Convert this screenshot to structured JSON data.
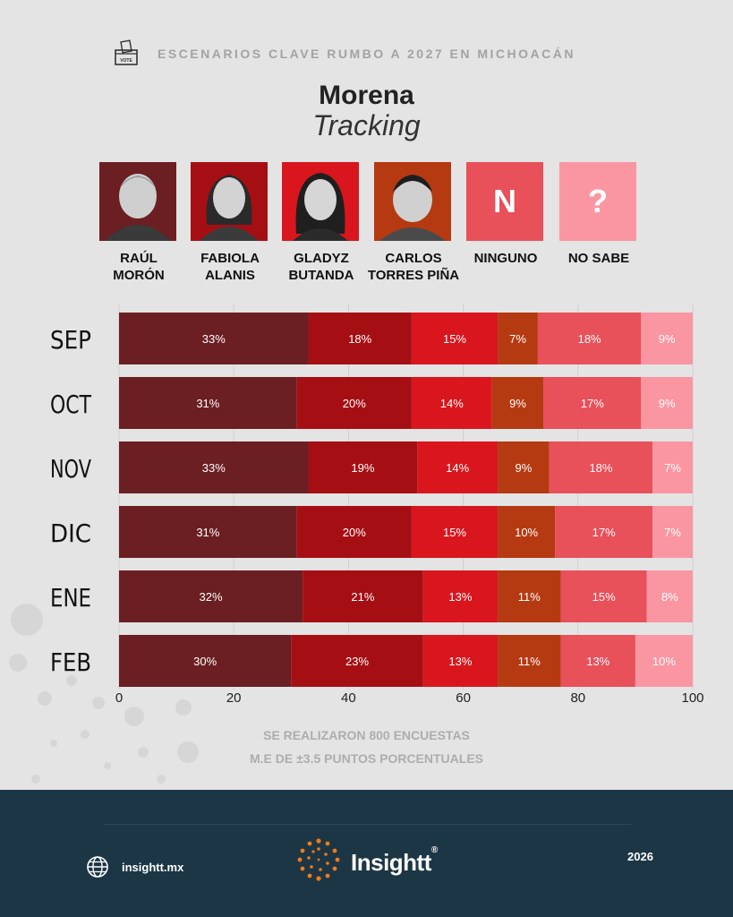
{
  "header": {
    "topline": "ESCENARIOS CLAVE RUMBO A 2027 EN MICHOACÁN",
    "title": "Morena",
    "subtitle": "Tracking",
    "vote_icon_label": "VOTE"
  },
  "candidates": [
    {
      "name": "RAÚL\nMORÓN",
      "color": "#6b1f22",
      "tile": "photo"
    },
    {
      "name": "FABIOLA\nALANIS",
      "color": "#a50f14",
      "tile": "photo"
    },
    {
      "name": "GLADYZ\nBUTANDA",
      "color": "#d9161d",
      "tile": "photo"
    },
    {
      "name": "CARLOS\nTORRES PIÑA",
      "color": "#b53a12",
      "tile": "photo"
    },
    {
      "name": "NINGUNO",
      "color": "#e8505a",
      "tile": "N"
    },
    {
      "name": "NO SABE",
      "color": "#fa96a2",
      "tile": "?"
    }
  ],
  "chart_data": {
    "type": "bar",
    "orientation": "horizontal-stacked",
    "categories": [
      "SEP",
      "OCT",
      "NOV",
      "DIC",
      "ENE",
      "FEB"
    ],
    "series": [
      {
        "name": "RAÚL MORÓN",
        "color": "#6b1f22",
        "values": [
          33,
          31,
          33,
          31,
          32,
          30
        ]
      },
      {
        "name": "FABIOLA ALANIS",
        "color": "#a50f14",
        "values": [
          18,
          20,
          19,
          20,
          21,
          23
        ]
      },
      {
        "name": "GLADYZ BUTANDA",
        "color": "#d9161d",
        "values": [
          15,
          14,
          14,
          15,
          13,
          13
        ]
      },
      {
        "name": "CARLOS TORRES PIÑA",
        "color": "#b53a12",
        "values": [
          7,
          9,
          9,
          10,
          11,
          11
        ]
      },
      {
        "name": "NINGUNO",
        "color": "#e8505a",
        "values": [
          18,
          17,
          18,
          17,
          15,
          13
        ]
      },
      {
        "name": "NO SABE",
        "color": "#fa96a2",
        "values": [
          9,
          9,
          7,
          7,
          8,
          10
        ]
      }
    ],
    "xlim": [
      0,
      100
    ],
    "xticks": [
      0,
      20,
      40,
      60,
      80,
      100
    ],
    "value_suffix": "%",
    "grid": true
  },
  "notes": {
    "line1": "SE REALIZARON 800 ENCUESTAS",
    "line2": "M.E DE ±3.5 PUNTOS PORCENTUALES"
  },
  "footer": {
    "site": "insightt.mx",
    "brand": "Insightt",
    "brand_mark": "®",
    "year": "2026"
  }
}
